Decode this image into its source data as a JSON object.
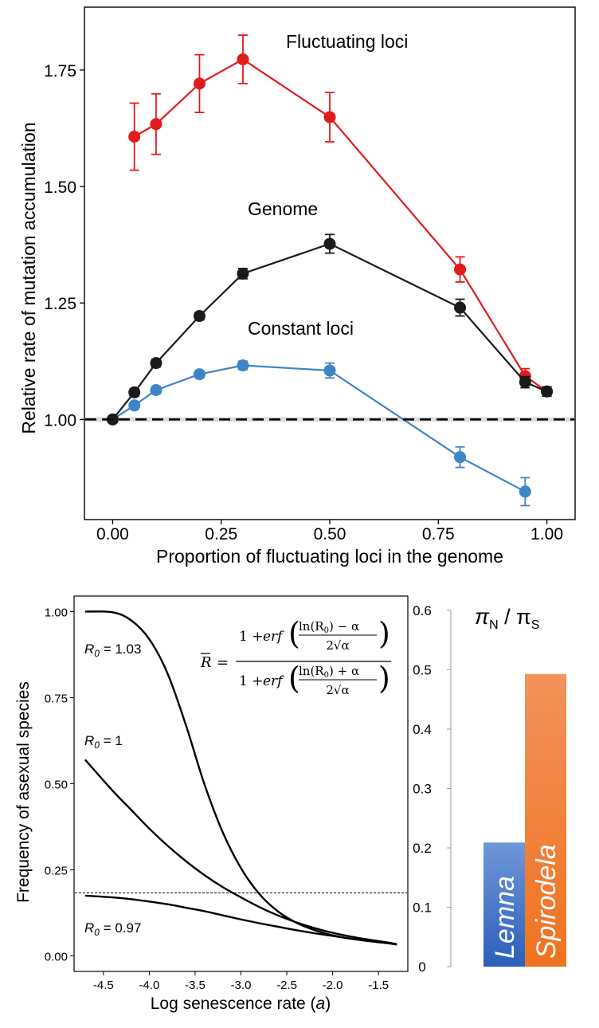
{
  "chart_data": [
    {
      "type": "line",
      "xlabel": "Proportion of fluctuating loci in the genome",
      "ylabel": "Relative rate of mutation accumulation",
      "xlim": [
        -0.065,
        1.065
      ],
      "ylim": [
        0.785,
        1.885
      ],
      "xticks": [
        0.0,
        0.25,
        0.5,
        0.75,
        1.0
      ],
      "xtick_labels": [
        "0.00",
        "0.25",
        "0.50",
        "0.75",
        "1.00"
      ],
      "yticks": [
        1.0,
        1.25,
        1.5,
        1.75
      ],
      "ytick_labels": [
        "1.00",
        "1.25",
        "1.50",
        "1.75"
      ],
      "reference_line": 1.0,
      "grid": false,
      "series": [
        {
          "name": "Fluctuating loci",
          "color": "#e31a1c",
          "points": [
            {
              "x": 0.05,
              "y": 1.607,
              "err": 0.072
            },
            {
              "x": 0.1,
              "y": 1.634,
              "err": 0.065
            },
            {
              "x": 0.2,
              "y": 1.721,
              "err": 0.062
            },
            {
              "x": 0.3,
              "y": 1.773,
              "err": 0.052
            },
            {
              "x": 0.5,
              "y": 1.649,
              "err": 0.053
            },
            {
              "x": 0.8,
              "y": 1.322,
              "err": 0.027
            },
            {
              "x": 0.95,
              "y": 1.093,
              "err": 0.016
            },
            {
              "x": 1.0,
              "y": 1.06,
              "err": 0.01
            }
          ]
        },
        {
          "name": "Genome",
          "color": "#1a1a1a",
          "points": [
            {
              "x": 0.0,
              "y": 1.0,
              "err": 0.005
            },
            {
              "x": 0.05,
              "y": 1.058,
              "err": 0.008
            },
            {
              "x": 0.1,
              "y": 1.121,
              "err": 0.008
            },
            {
              "x": 0.2,
              "y": 1.222,
              "err": 0.008
            },
            {
              "x": 0.3,
              "y": 1.313,
              "err": 0.011
            },
            {
              "x": 0.5,
              "y": 1.377,
              "err": 0.02
            },
            {
              "x": 0.8,
              "y": 1.24,
              "err": 0.018
            },
            {
              "x": 0.95,
              "y": 1.08,
              "err": 0.012
            },
            {
              "x": 1.0,
              "y": 1.06,
              "err": 0.01
            }
          ]
        },
        {
          "name": "Constant loci",
          "color": "#3d85c6",
          "points": [
            {
              "x": 0.0,
              "y": 1.0,
              "err": 0.004
            },
            {
              "x": 0.05,
              "y": 1.03,
              "err": 0.007
            },
            {
              "x": 0.1,
              "y": 1.063,
              "err": 0.008
            },
            {
              "x": 0.2,
              "y": 1.097,
              "err": 0.008
            },
            {
              "x": 0.3,
              "y": 1.116,
              "err": 0.009
            },
            {
              "x": 0.5,
              "y": 1.105,
              "err": 0.016
            },
            {
              "x": 0.8,
              "y": 0.919,
              "err": 0.022
            },
            {
              "x": 0.95,
              "y": 0.845,
              "err": 0.03
            }
          ]
        }
      ]
    },
    {
      "type": "line",
      "xlabel_text": "Log senescence rate (",
      "xlabel_symbol": "a",
      "xlabel_close": ")",
      "ylabel": "Frequency of asexual species",
      "xlim": [
        -4.82,
        -1.18
      ],
      "ylim": [
        -0.045,
        1.045
      ],
      "xticks": [
        -4.5,
        -4.0,
        -3.5,
        -3.0,
        -2.5,
        -2.0,
        -1.5
      ],
      "xtick_labels": [
        "-4.5",
        "-4.0",
        "-3.5",
        "-3.0",
        "-2.5",
        "-2.0",
        "-1.5"
      ],
      "yticks": [
        0.0,
        0.25,
        0.5,
        0.75,
        1.0
      ],
      "ytick_labels": [
        "0.00",
        "0.25",
        "0.50",
        "0.75",
        "1.00"
      ],
      "reference_line": 0.183,
      "grid": false,
      "curves": [
        {
          "label_prefix": "R",
          "label_sub": "0",
          "label_value": " = 1.03",
          "x": [
            -4.7,
            -4.4,
            -4.2,
            -4.0,
            -3.8,
            -3.6,
            -3.4,
            -3.2,
            -3.0,
            -2.8,
            -2.6,
            -2.4,
            -2.2,
            -2.0,
            -1.8,
            -1.6,
            -1.4,
            -1.3
          ],
          "y": [
            1.0,
            0.998,
            0.975,
            0.92,
            0.82,
            0.67,
            0.5,
            0.36,
            0.255,
            0.18,
            0.13,
            0.097,
            0.075,
            0.06,
            0.05,
            0.043,
            0.037,
            0.033
          ]
        },
        {
          "label_prefix": "R",
          "label_sub": "0",
          "label_value": " = 1",
          "x": [
            -4.7,
            -4.4,
            -4.2,
            -4.0,
            -3.8,
            -3.6,
            -3.4,
            -3.2,
            -3.0,
            -2.8,
            -2.6,
            -2.4,
            -2.2,
            -2.0,
            -1.8,
            -1.6,
            -1.4,
            -1.3
          ],
          "y": [
            0.57,
            0.48,
            0.425,
            0.37,
            0.32,
            0.275,
            0.235,
            0.2,
            0.17,
            0.142,
            0.118,
            0.098,
            0.081,
            0.067,
            0.056,
            0.047,
            0.039,
            0.034
          ]
        },
        {
          "label_prefix": "R",
          "label_sub": "0",
          "label_value": " = 0.97",
          "x": [
            -4.7,
            -4.4,
            -4.2,
            -4.0,
            -3.8,
            -3.6,
            -3.4,
            -3.2,
            -3.0,
            -2.8,
            -2.6,
            -2.4,
            -2.2,
            -2.0,
            -1.8,
            -1.6,
            -1.4,
            -1.3
          ],
          "y": [
            0.175,
            0.17,
            0.165,
            0.158,
            0.15,
            0.14,
            0.13,
            0.118,
            0.106,
            0.095,
            0.085,
            0.075,
            0.066,
            0.058,
            0.05,
            0.043,
            0.037,
            0.033
          ]
        }
      ],
      "formula": {
        "lhs": "R",
        "equals": "=",
        "one_plus": "1 +",
        "erf": "erf",
        "num_top": "ln(R",
        "num_top_sub": "0",
        "num_top_tail_minus": ") − α",
        "num_top_tail_plus": ") + α",
        "den": "2√α"
      }
    },
    {
      "type": "bar",
      "title_prefix": "π",
      "title_sub1": "N",
      "title_sep": " / π",
      "title_sub2": "S",
      "ylim": [
        0,
        0.6
      ],
      "yticks": [
        0,
        0.1,
        0.2,
        0.3,
        0.4,
        0.5,
        0.6
      ],
      "ytick_labels": [
        "0",
        "0.1",
        "0.2",
        "0.3",
        "0.4",
        "0.5",
        "0.6"
      ],
      "categories": [
        "Lemna",
        "Spirodela"
      ],
      "values": [
        0.209,
        0.493
      ],
      "colors": [
        "#3b6fc4",
        "#f07628"
      ]
    }
  ]
}
